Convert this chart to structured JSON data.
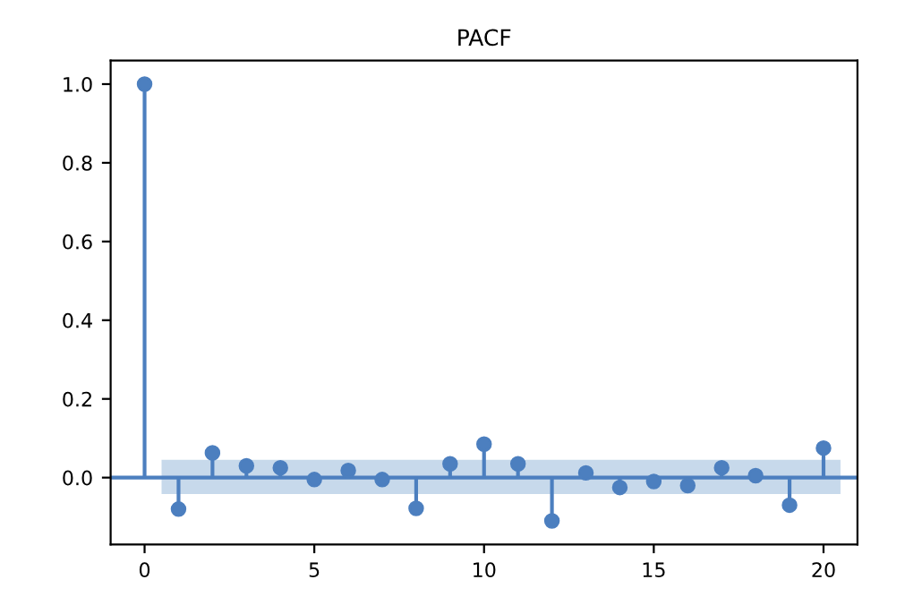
{
  "chart_data": {
    "type": "lollipop",
    "title": "PACF",
    "x": [
      0,
      1,
      2,
      3,
      4,
      5,
      6,
      7,
      8,
      9,
      10,
      11,
      12,
      13,
      14,
      15,
      16,
      17,
      18,
      19,
      20
    ],
    "values": [
      1.0,
      -0.08,
      0.063,
      0.03,
      0.025,
      -0.005,
      0.018,
      -0.005,
      -0.078,
      0.035,
      0.085,
      0.035,
      -0.11,
      0.012,
      -0.025,
      -0.01,
      -0.02,
      0.025,
      0.005,
      -0.07,
      0.075
    ],
    "color": "#4c7fbf",
    "marker": "circle",
    "xlim": [
      -1,
      21
    ],
    "xticks": [
      0,
      5,
      10,
      15,
      20
    ],
    "ylim": [
      -0.17,
      1.06
    ],
    "yticks": [
      {
        "value": 0,
        "label": "0.0"
      },
      0.2,
      0.4,
      0.6,
      0.8,
      {
        "value": 1,
        "label": "1.0"
      }
    ],
    "ref_lines": [
      {
        "axis": "y",
        "value": 0,
        "color": "#4c7fbf"
      }
    ],
    "bands": [
      {
        "axis": "y",
        "from": -0.042,
        "to": 0.045,
        "color": "#b9cfe6"
      }
    ]
  }
}
